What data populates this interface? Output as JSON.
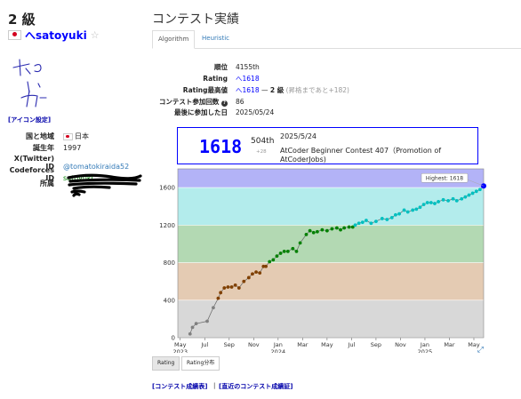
{
  "user": {
    "kyu": "2 級",
    "username_prefix": "へ",
    "username": "satoyuki",
    "star": "☆",
    "icon_setting": "[アイコン設定]"
  },
  "profile": [
    {
      "key": "国と地域",
      "value": "日本",
      "flag": true,
      "color": "#222"
    },
    {
      "key": "誕生年",
      "value": "1997",
      "color": "#222"
    },
    {
      "key": "X(Twitter) ID",
      "value": "@tomatokiraida52",
      "color": "#337ab7"
    },
    {
      "key": "Codeforces ID",
      "value": "satoyuki",
      "color": "#008000"
    },
    {
      "key": "所属",
      "value": "",
      "color": "#222"
    }
  ],
  "section_title": "コンテスト実績",
  "tabs": [
    {
      "label": "Algorithm",
      "active": true
    },
    {
      "label": "Heuristic",
      "active": false
    }
  ],
  "summary": {
    "rank_label": "順位",
    "rank_value": "4155th",
    "rating_label": "Rating",
    "rating_value": "1618",
    "highest_label": "Rating最高値",
    "highest_value": "1618",
    "highest_kyu": "2 級",
    "highest_note": "(昇格まであと+182)",
    "count_label": "コンテスト参加回数",
    "count_value": "86",
    "last_label": "最後に参加した日",
    "last_value": "2025/05/24"
  },
  "latest_contest": {
    "rating": "1618",
    "rank": "504th",
    "rank_diff": "+28",
    "date": "2025/5/24",
    "name": "AtCoder Beginner Contest 407（Promotion of AtCoderJobs)"
  },
  "chart_data": {
    "type": "line",
    "ylim": [
      0,
      1800
    ],
    "yticks": [
      "0",
      "400",
      "800",
      "1200",
      "1600"
    ],
    "xticks": [
      {
        "label": "May",
        "sub": "2023",
        "t": 0
      },
      {
        "label": "Jul",
        "sub": "",
        "t": 2
      },
      {
        "label": "Sep",
        "sub": "",
        "t": 4
      },
      {
        "label": "Nov",
        "sub": "",
        "t": 6
      },
      {
        "label": "Jan",
        "sub": "2024",
        "t": 8
      },
      {
        "label": "Mar",
        "sub": "",
        "t": 10
      },
      {
        "label": "May",
        "sub": "",
        "t": 12
      },
      {
        "label": "Jul",
        "sub": "",
        "t": 14
      },
      {
        "label": "Sep",
        "sub": "",
        "t": 16
      },
      {
        "label": "Nov",
        "sub": "",
        "t": 18
      },
      {
        "label": "Jan",
        "sub": "2025",
        "t": 20
      },
      {
        "label": "Mar",
        "sub": "",
        "t": 22
      },
      {
        "label": "May",
        "sub": "",
        "t": 24
      }
    ],
    "xlim": [
      -0.2,
      24.8
    ],
    "bands": [
      {
        "from": 0,
        "to": 400,
        "color": "#d8d8d8"
      },
      {
        "from": 400,
        "to": 800,
        "color": "#e4cbb3"
      },
      {
        "from": 800,
        "to": 1200,
        "color": "#b3d9b3"
      },
      {
        "from": 1200,
        "to": 1600,
        "color": "#b3ecec"
      },
      {
        "from": 1600,
        "to": 1800,
        "color": "#b3b3f7"
      }
    ],
    "highest_label": "Highest: 1618",
    "points": [
      [
        0.8,
        40
      ],
      [
        1.0,
        110
      ],
      [
        1.3,
        150
      ],
      [
        2.2,
        175
      ],
      [
        2.7,
        320
      ],
      [
        3.1,
        420
      ],
      [
        3.3,
        480
      ],
      [
        3.6,
        530
      ],
      [
        3.9,
        540
      ],
      [
        4.2,
        540
      ],
      [
        4.5,
        560
      ],
      [
        4.8,
        530
      ],
      [
        5.2,
        600
      ],
      [
        5.6,
        640
      ],
      [
        5.9,
        680
      ],
      [
        6.2,
        700
      ],
      [
        6.5,
        690
      ],
      [
        6.8,
        760
      ],
      [
        7.0,
        760
      ],
      [
        7.3,
        810
      ],
      [
        7.6,
        830
      ],
      [
        7.9,
        870
      ],
      [
        8.2,
        900
      ],
      [
        8.5,
        920
      ],
      [
        8.8,
        920
      ],
      [
        9.2,
        950
      ],
      [
        9.5,
        920
      ],
      [
        9.8,
        1010
      ],
      [
        10.3,
        1100
      ],
      [
        10.6,
        1140
      ],
      [
        10.9,
        1120
      ],
      [
        11.2,
        1130
      ],
      [
        11.6,
        1150
      ],
      [
        12.0,
        1140
      ],
      [
        12.4,
        1160
      ],
      [
        12.8,
        1170
      ],
      [
        13.1,
        1150
      ],
      [
        13.4,
        1170
      ],
      [
        13.8,
        1180
      ],
      [
        14.1,
        1180
      ],
      [
        14.3,
        1200
      ],
      [
        14.6,
        1220
      ],
      [
        14.9,
        1230
      ],
      [
        15.2,
        1250
      ],
      [
        15.6,
        1220
      ],
      [
        16.0,
        1240
      ],
      [
        16.5,
        1270
      ],
      [
        16.9,
        1260
      ],
      [
        17.3,
        1280
      ],
      [
        17.6,
        1310
      ],
      [
        17.9,
        1320
      ],
      [
        18.3,
        1360
      ],
      [
        18.6,
        1340
      ],
      [
        19.0,
        1360
      ],
      [
        19.3,
        1370
      ],
      [
        19.6,
        1390
      ],
      [
        19.9,
        1420
      ],
      [
        20.2,
        1440
      ],
      [
        20.5,
        1440
      ],
      [
        20.8,
        1430
      ],
      [
        21.1,
        1450
      ],
      [
        21.5,
        1470
      ],
      [
        21.9,
        1460
      ],
      [
        22.3,
        1480
      ],
      [
        22.6,
        1460
      ],
      [
        23.0,
        1480
      ],
      [
        23.3,
        1500
      ],
      [
        23.6,
        1520
      ],
      [
        23.9,
        1540
      ],
      [
        24.2,
        1560
      ],
      [
        24.5,
        1580
      ],
      [
        24.8,
        1618
      ]
    ]
  },
  "chart_buttons": [
    {
      "label": "Rating",
      "on": true
    },
    {
      "label": "Rating分布",
      "on": false
    }
  ],
  "footer_links": [
    "[コンテスト成績表]",
    "[直近のコンテスト成績証]"
  ]
}
